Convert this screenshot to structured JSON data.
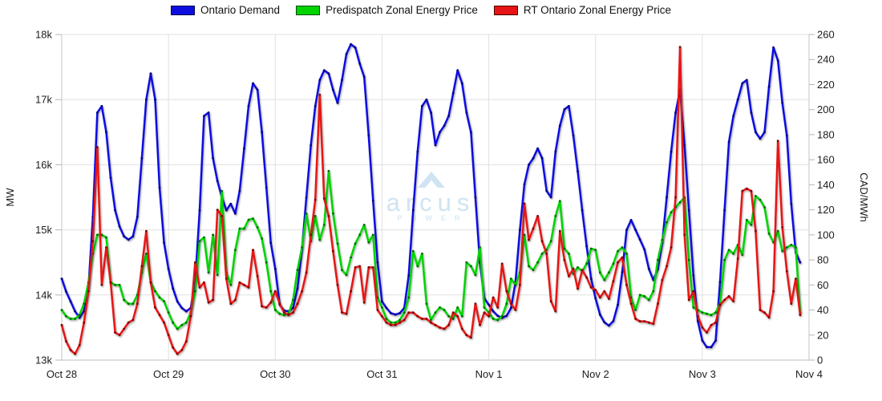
{
  "legend": {
    "items": [
      {
        "id": "ontario-demand",
        "label": "Ontario Demand",
        "color": "#0d0de0",
        "border": "#00004d"
      },
      {
        "id": "predispatch-zonal-energy-price",
        "label": "Predispatch Zonal Energy Price",
        "color": "#00d300",
        "border": "#004d00"
      },
      {
        "id": "rt-ontario-zonal-energy-price",
        "label": "RT Ontario Zonal Energy Price",
        "color": "#e61414",
        "border": "#4d0000"
      }
    ]
  },
  "watermark": {
    "brand": "arcus",
    "sub": "POWER",
    "color": "#cfe4f2",
    "text_color": "#cfe4f2",
    "sub_color": "#d9ebf6"
  },
  "chart_data": {
    "type": "line",
    "title": "",
    "x_unit": "hour",
    "points_per_day": 24,
    "x_labels": [
      "Oct 28",
      "Oct 29",
      "Oct 30",
      "Oct 31",
      "Nov 1",
      "Nov 2",
      "Nov 3",
      "Nov 4"
    ],
    "grid": true,
    "legend_position": "top",
    "left_axis": {
      "label": "MW",
      "min": 13000,
      "max": 18000,
      "ticks": [
        {
          "label": "18k",
          "value": 18000
        },
        {
          "label": "17k",
          "value": 17000
        },
        {
          "label": "16k",
          "value": 16000
        },
        {
          "label": "15k",
          "value": 15000
        },
        {
          "label": "14k",
          "value": 14000
        },
        {
          "label": "13k",
          "value": 13000
        }
      ]
    },
    "right_axis": {
      "label": "CAD/MWh",
      "min": 0,
      "max": 260,
      "ticks": [
        {
          "label": "260",
          "value": 260
        },
        {
          "label": "240",
          "value": 240
        },
        {
          "label": "220",
          "value": 220
        },
        {
          "label": "200",
          "value": 200
        },
        {
          "label": "180",
          "value": 180
        },
        {
          "label": "160",
          "value": 160
        },
        {
          "label": "140",
          "value": 140
        },
        {
          "label": "120",
          "value": 120
        },
        {
          "label": "100",
          "value": 100
        },
        {
          "label": "80",
          "value": 80
        },
        {
          "label": "60",
          "value": 60
        },
        {
          "label": "40",
          "value": 40
        },
        {
          "label": "20",
          "value": 20
        },
        {
          "label": "0",
          "value": 0
        }
      ]
    },
    "series": [
      {
        "id": "ontario-demand",
        "name": "Ontario Demand",
        "axis": "left",
        "color": "#0d0de0",
        "marker_color": "#000080",
        "values": [
          14250,
          14050,
          13900,
          13750,
          13650,
          13750,
          14100,
          15200,
          16800,
          16900,
          16500,
          15800,
          15300,
          15050,
          14900,
          14850,
          14900,
          15200,
          16100,
          17000,
          17400,
          17000,
          15650,
          14800,
          14400,
          14100,
          13900,
          13800,
          13750,
          13800,
          14200,
          15300,
          16750,
          16800,
          16100,
          15750,
          15500,
          15300,
          15400,
          15250,
          15600,
          16250,
          16900,
          17250,
          17150,
          16500,
          15650,
          14800,
          14400,
          13850,
          13760,
          13750,
          13800,
          14100,
          14700,
          15500,
          16300,
          16900,
          17300,
          17450,
          17400,
          17150,
          16950,
          17300,
          17700,
          17850,
          17800,
          17550,
          17350,
          16450,
          15450,
          14500,
          13900,
          13800,
          13720,
          13700,
          13720,
          13800,
          14300,
          15300,
          16200,
          16900,
          17000,
          16800,
          16300,
          16500,
          16600,
          16750,
          17100,
          17450,
          17250,
          16800,
          16500,
          15500,
          14500,
          13950,
          13850,
          13750,
          13680,
          13650,
          13680,
          13800,
          14200,
          15000,
          15700,
          16000,
          16100,
          16250,
          16100,
          15600,
          15500,
          16200,
          16600,
          16850,
          16900,
          16450,
          15900,
          15300,
          14750,
          14250,
          13950,
          13700,
          13580,
          13530,
          13600,
          13850,
          14350,
          15000,
          15150,
          15000,
          14850,
          14700,
          14400,
          14230,
          14400,
          14800,
          15500,
          16200,
          16800,
          17150,
          16300,
          15300,
          14300,
          13600,
          13300,
          13200,
          13200,
          13300,
          14200,
          15300,
          16350,
          16750,
          17000,
          17250,
          17300,
          16800,
          16500,
          16400,
          16500,
          17200,
          17800,
          17600,
          16950,
          16450,
          15400,
          14650,
          14500
        ]
      },
      {
        "id": "predispatch-zonal-energy-price",
        "name": "Predispatch Zonal Energy Price",
        "axis": "right",
        "color": "#00d300",
        "marker_color": "#006b00",
        "values": [
          40,
          35,
          33,
          33,
          36,
          45,
          62,
          85,
          100,
          100,
          98,
          62,
          60,
          60,
          48,
          45,
          45,
          52,
          70,
          85,
          62,
          55,
          50,
          47,
          38,
          30,
          25,
          28,
          30,
          38,
          55,
          95,
          98,
          70,
          100,
          68,
          135,
          70,
          60,
          88,
          105,
          105,
          112,
          113,
          106,
          97,
          78,
          55,
          40,
          37,
          36,
          37,
          48,
          72,
          90,
          117,
          95,
          115,
          96,
          108,
          151,
          117,
          93,
          72,
          68,
          82,
          93,
          100,
          108,
          94,
          100,
          50,
          42,
          33,
          30,
          30,
          32,
          38,
          50,
          87,
          75,
          85,
          45,
          32,
          38,
          42,
          40,
          35,
          33,
          42,
          35,
          78,
          75,
          68,
          90,
          42,
          38,
          33,
          32,
          35,
          45,
          65,
          60,
          70,
          100,
          75,
          72,
          78,
          85,
          88,
          95,
          115,
          127,
          89,
          85,
          69,
          74,
          71,
          77,
          89,
          88,
          70,
          64,
          70,
          77,
          87,
          90,
          85,
          50,
          40,
          52,
          51,
          48,
          55,
          80,
          96,
          110,
          118,
          122,
          126,
          130,
          80,
          42,
          40,
          38,
          37,
          36,
          38,
          45,
          80,
          88,
          85,
          92,
          84,
          112,
          108,
          131,
          128,
          122,
          101,
          94,
          103,
          87,
          90,
          92,
          90,
          38
        ]
      },
      {
        "id": "rt-ontario-zonal-energy-price",
        "name": "RT Ontario Zonal Energy Price",
        "axis": "right",
        "color": "#e61414",
        "marker_color": "#800000",
        "values": [
          28,
          15,
          8,
          5,
          12,
          30,
          55,
          95,
          170,
          60,
          90,
          62,
          22,
          20,
          25,
          30,
          32,
          45,
          75,
          103,
          62,
          42,
          36,
          30,
          20,
          10,
          5,
          8,
          15,
          35,
          78,
          58,
          62,
          46,
          48,
          120,
          115,
          65,
          45,
          48,
          62,
          60,
          58,
          88,
          67,
          43,
          42,
          46,
          55,
          45,
          38,
          36,
          38,
          45,
          55,
          70,
          100,
          128,
          212,
          129,
          115,
          87,
          60,
          38,
          37,
          55,
          74,
          75,
          46,
          74,
          74,
          40,
          35,
          30,
          28,
          28,
          30,
          32,
          38,
          38,
          35,
          33,
          33,
          30,
          28,
          26,
          25,
          28,
          38,
          35,
          25,
          20,
          18,
          45,
          28,
          38,
          35,
          50,
          42,
          77,
          55,
          45,
          40,
          60,
          125,
          96,
          105,
          115,
          95,
          85,
          47,
          39,
          103,
          80,
          67,
          73,
          57,
          72,
          66,
          58,
          56,
          50,
          55,
          49,
          63,
          78,
          82,
          60,
          45,
          33,
          31,
          31,
          30,
          29,
          45,
          64,
          75,
          90,
          130,
          250,
          100,
          48,
          55,
          35,
          26,
          22,
          28,
          30,
          44,
          48,
          51,
          47,
          81,
          135,
          137,
          135,
          103,
          40,
          38,
          34,
          55,
          175,
          106,
          71,
          45,
          65,
          36
        ]
      }
    ]
  }
}
